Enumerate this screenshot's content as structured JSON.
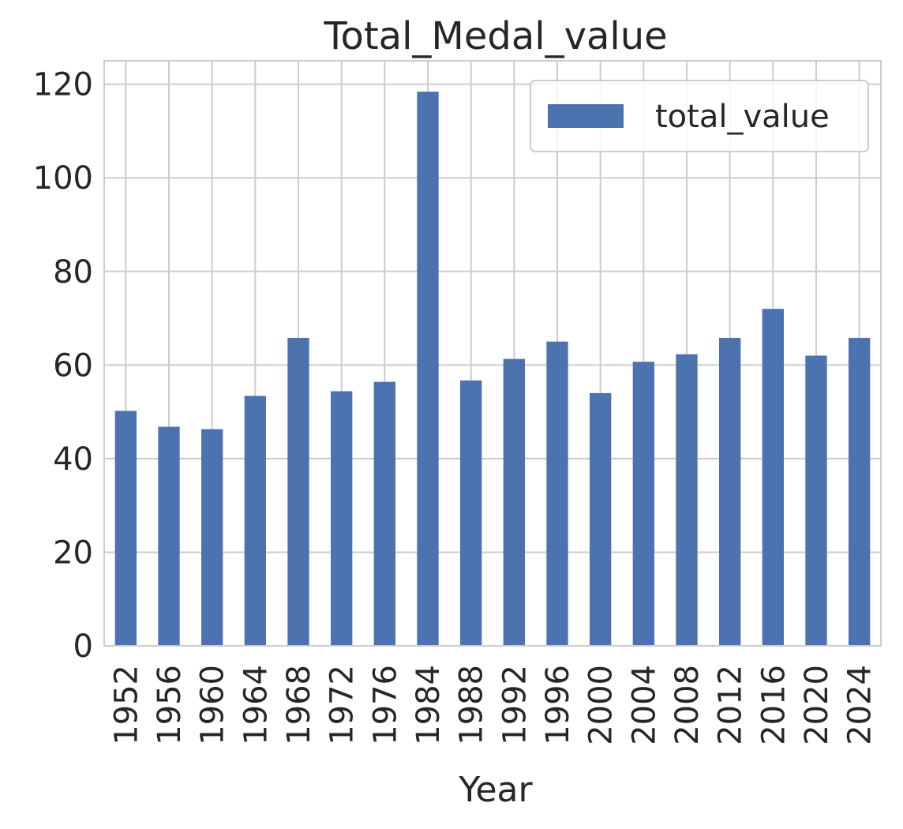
{
  "chart_data": {
    "type": "bar",
    "title": "Total_Medal_value",
    "xlabel": "Year",
    "ylabel": "",
    "categories": [
      "1952",
      "1956",
      "1960",
      "1964",
      "1968",
      "1972",
      "1976",
      "1984",
      "1988",
      "1992",
      "1996",
      "2000",
      "2004",
      "2008",
      "2012",
      "2016",
      "2020",
      "2024"
    ],
    "series": [
      {
        "name": "total_value",
        "color": "#4c72b0",
        "values": [
          50.2,
          46.8,
          46.3,
          53.4,
          65.8,
          54.4,
          56.4,
          118.4,
          56.7,
          61.3,
          65.0,
          54.0,
          60.7,
          62.3,
          65.8,
          72.0,
          62.0,
          65.8
        ]
      }
    ],
    "ylim": [
      0,
      125
    ],
    "yticks": [
      0,
      20,
      40,
      60,
      80,
      100,
      120
    ],
    "grid": true,
    "legend_position": "top-right",
    "colors": {
      "grid": "#cccccc",
      "frame": "#cccccc",
      "text": "#262626"
    }
  }
}
